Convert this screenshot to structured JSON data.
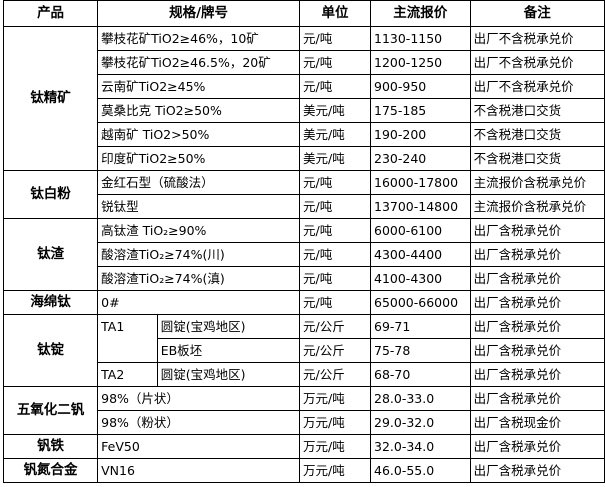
{
  "header": {
    "product": "产品",
    "spec": "规格/牌号",
    "unit": "单位",
    "price": "主流报价",
    "note": "备注"
  },
  "groups": [
    {
      "product": "钛精矿",
      "rows": [
        {
          "spec": "攀枝花矿TiO2≥46%，10矿",
          "unit": "元/吨",
          "price": "1130-1150",
          "note": "出厂不含税承兑价"
        },
        {
          "spec": "攀枝花矿TiO2≥46.5%，20矿",
          "unit": "元/吨",
          "price": "1200-1250",
          "note": "出厂不含税承兑价"
        },
        {
          "spec": "云南矿TiO2≥45%",
          "unit": "元/吨",
          "price": "900-950",
          "note": "出厂不含税承兑价"
        },
        {
          "spec": "莫桑比克 TiO2≥50%",
          "unit": "美元/吨",
          "price": "175-185",
          "note": "不含税港口交货"
        },
        {
          "spec": "越南矿 TiO2>50%",
          "unit": "美元/吨",
          "price": "190-200",
          "note": "不含税港口交货"
        },
        {
          "spec": "印度矿TiO2≥50%",
          "unit": "美元/吨",
          "price": "230-240",
          "note": "不含税港口交货"
        }
      ]
    },
    {
      "product": "钛白粉",
      "rows": [
        {
          "spec": "金红石型（硫酸法）",
          "unit": "元/吨",
          "price": "16000-17800",
          "note": "主流报价含税承兑价"
        },
        {
          "spec": "锐钛型",
          "unit": "元/吨",
          "price": "13700-14800",
          "note": "主流报价含税承兑价"
        }
      ]
    },
    {
      "product": "钛渣",
      "rows": [
        {
          "spec": "高钛渣 TiO₂≥90%",
          "unit": "元/吨",
          "price": "6000-6100",
          "note": "出厂含税承兑价"
        },
        {
          "spec": "酸溶渣TiO₂≥74%(川)",
          "unit": "元/吨",
          "price": "4300-4400",
          "note": "出厂含税承兑价"
        },
        {
          "spec": "酸溶渣TiO₂≥74%(滇)",
          "unit": "元/吨",
          "price": "4100-4300",
          "note": "出厂含税承兑价"
        }
      ]
    },
    {
      "product": "海绵钛",
      "rows": [
        {
          "spec": "0#",
          "unit": "元/吨",
          "price": "65000-66000",
          "note": "出厂含税承兑价"
        }
      ]
    },
    {
      "product": "钛锭",
      "rows": [
        {
          "grade": "TA1",
          "gradeSpan": 2,
          "spec": "圆锭(宝鸡地区)",
          "unit": "元/公斤",
          "price": "69-71",
          "note": "出厂含税承兑价"
        },
        {
          "spec": "EB板坯",
          "unit": "元/公斤",
          "price": "75-78",
          "note": "出厂含税承兑价"
        },
        {
          "grade": "TA2",
          "gradeSpan": 1,
          "spec": "圆锭(宝鸡地区)",
          "unit": "元/公斤",
          "price": "68-70",
          "note": "出厂含税承兑价"
        }
      ]
    },
    {
      "product": "五氧化二钒",
      "rows": [
        {
          "spec": "98%（片状）",
          "unit": "万元/吨",
          "price": "28.0-33.0",
          "note": "出厂含税承兑价"
        },
        {
          "spec": "98%（粉状）",
          "unit": "万元/吨",
          "price": "29.0-32.0",
          "note": "出厂含税现金价"
        }
      ]
    },
    {
      "product": "钒铁",
      "rows": [
        {
          "spec": "FeV50",
          "unit": "万元/吨",
          "price": "32.0-34.0",
          "note": "出厂含税承兑价"
        }
      ]
    },
    {
      "product": "钒氮合金",
      "rows": [
        {
          "spec": "VN16",
          "unit": "万元/吨",
          "price": "46.0-55.0",
          "note": "出厂含税承兑价"
        }
      ]
    }
  ]
}
